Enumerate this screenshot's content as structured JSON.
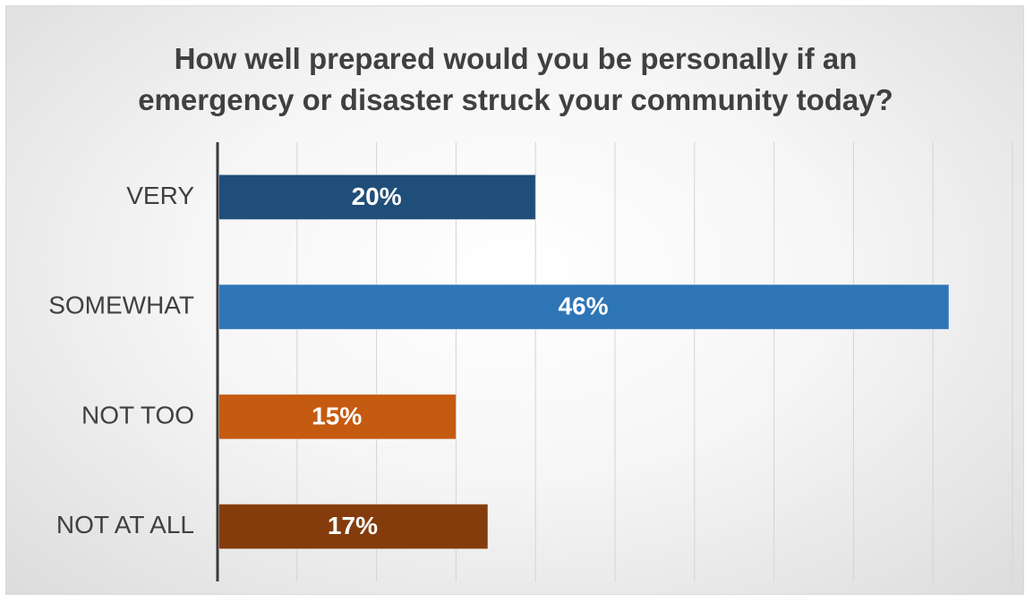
{
  "chart_data": {
    "type": "bar",
    "orientation": "horizontal",
    "title_lines": [
      "How well prepared would you be personally if an",
      "emergency or disaster struck your community today?"
    ],
    "categories": [
      "VERY",
      "SOMEWHAT",
      "NOT TOO",
      "NOT AT ALL"
    ],
    "values": [
      20,
      46,
      15,
      17
    ],
    "data_labels": [
      "20%",
      "46%",
      "15%",
      "17%"
    ],
    "colors": [
      "#1f4e79",
      "#2e75b6",
      "#c55a11",
      "#843c0c"
    ],
    "xlim": [
      0,
      50
    ],
    "grid": true,
    "legend": false,
    "tick_labels_visible": false
  }
}
